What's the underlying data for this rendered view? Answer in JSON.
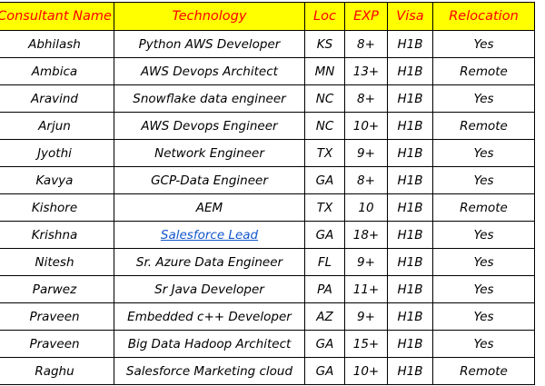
{
  "table": {
    "headers": [
      "Consultant Name",
      "Technology",
      "Loc",
      "EXP",
      "Visa",
      "Relocation"
    ],
    "rows": [
      {
        "name": "Abhilash",
        "technology": "Python AWS Developer",
        "loc": "KS",
        "exp": "8+",
        "visa": "H1B",
        "relocation": "Yes"
      },
      {
        "name": "Ambica",
        "technology": "AWS Devops Architect",
        "loc": "MN",
        "exp": "13+",
        "visa": "H1B",
        "relocation": "Remote"
      },
      {
        "name": "Aravind",
        "technology": "Snowflake data engineer",
        "loc": "NC",
        "exp": "8+",
        "visa": "H1B",
        "relocation": "Yes"
      },
      {
        "name": "Arjun",
        "technology": "AWS Devops Engineer",
        "loc": "NC",
        "exp": "10+",
        "visa": "H1B",
        "relocation": "Remote"
      },
      {
        "name": "Jyothi",
        "technology": "Network Engineer",
        "loc": "TX",
        "exp": "9+",
        "visa": "H1B",
        "relocation": "Yes"
      },
      {
        "name": "Kavya",
        "technology": "GCP-Data Engineer",
        "loc": "GA",
        "exp": "8+",
        "visa": "H1B",
        "relocation": "Yes"
      },
      {
        "name": "Kishore",
        "technology": "AEM",
        "loc": "TX",
        "exp": "10",
        "visa": "H1B",
        "relocation": "Remote"
      },
      {
        "name": "Krishna",
        "technology": "Salesforce Lead",
        "loc": "GA",
        "exp": "18+",
        "visa": "H1B",
        "relocation": "Yes",
        "technology_is_link": true
      },
      {
        "name": "Nitesh",
        "technology": "Sr. Azure Data Engineer",
        "loc": "FL",
        "exp": "9+",
        "visa": "H1B",
        "relocation": "Yes"
      },
      {
        "name": "Parwez",
        "technology": "Sr Java Developer",
        "loc": "PA",
        "exp": "11+",
        "visa": "H1B",
        "relocation": "Yes"
      },
      {
        "name": "Praveen",
        "technology": "Embedded c++ Developer",
        "loc": "AZ",
        "exp": "9+",
        "visa": "H1B",
        "relocation": "Yes"
      },
      {
        "name": "Praveen",
        "technology": "Big Data Hadoop Architect",
        "loc": "GA",
        "exp": "15+",
        "visa": "H1B",
        "relocation": "Yes"
      },
      {
        "name": "Raghu",
        "technology": "Salesforce Marketing cloud",
        "loc": "GA",
        "exp": "10+",
        "visa": "H1B",
        "relocation": "Remote"
      }
    ]
  },
  "colors": {
    "header_background": "#ffff00",
    "header_text": "#ff0000",
    "link": "#1155cc",
    "border": "#000000"
  }
}
